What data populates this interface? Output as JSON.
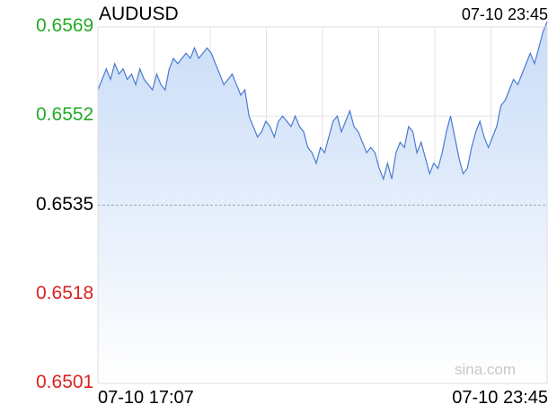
{
  "header": {
    "symbol": "AUDUSD",
    "timestamp": "07-10 23:45"
  },
  "watermark": "sina.com",
  "colors": {
    "up": "#22aa22",
    "down": "#dd2222",
    "neutral": "#000000",
    "line": "#4a7bd0",
    "fill_top": "#c9dcf7",
    "fill_bottom": "#ffffff",
    "grid": "#e3e3e3",
    "base_line": "#9aa6c4"
  },
  "chart_data": {
    "type": "area",
    "title": "AUDUSD",
    "xlabel": "",
    "ylabel": "",
    "ylim": [
      0.6501,
      0.6569
    ],
    "reference_price": 0.6535,
    "y_ticks": [
      {
        "label": "0.6569",
        "value": 0.6569,
        "tone": "up"
      },
      {
        "label": "0.6552",
        "value": 0.6552,
        "tone": "up"
      },
      {
        "label": "0.6535",
        "value": 0.6535,
        "tone": "neutral"
      },
      {
        "label": "0.6518",
        "value": 0.6518,
        "tone": "down"
      },
      {
        "label": "0.6501",
        "value": 0.6501,
        "tone": "down"
      }
    ],
    "x_ticks": [
      "07-10 17:07",
      "07-10 23:45"
    ],
    "grid": true,
    "series": [
      {
        "values": [
          0.6557,
          0.6559,
          0.6561,
          0.6559,
          0.6562,
          0.656,
          0.6561,
          0.6559,
          0.656,
          0.6558,
          0.6561,
          0.6559,
          0.6558,
          0.6557,
          0.656,
          0.6558,
          0.6557,
          0.6561,
          0.6563,
          0.6562,
          0.6563,
          0.6564,
          0.6563,
          0.6565,
          0.6563,
          0.6564,
          0.6565,
          0.6564,
          0.6562,
          0.656,
          0.6558,
          0.6559,
          0.656,
          0.6558,
          0.6556,
          0.6557,
          0.6552,
          0.655,
          0.6548,
          0.6549,
          0.6551,
          0.655,
          0.6548,
          0.6551,
          0.6552,
          0.6551,
          0.655,
          0.6552,
          0.655,
          0.6549,
          0.6546,
          0.6545,
          0.6543,
          0.6546,
          0.6545,
          0.6548,
          0.6551,
          0.6552,
          0.6549,
          0.6551,
          0.6553,
          0.655,
          0.6549,
          0.6547,
          0.6545,
          0.6546,
          0.6545,
          0.6542,
          0.654,
          0.6543,
          0.654,
          0.6545,
          0.6547,
          0.6546,
          0.655,
          0.6549,
          0.6545,
          0.6547,
          0.6544,
          0.6541,
          0.6543,
          0.6542,
          0.6545,
          0.6549,
          0.6552,
          0.6548,
          0.6544,
          0.6541,
          0.6542,
          0.6546,
          0.6549,
          0.6551,
          0.6548,
          0.6546,
          0.6548,
          0.655,
          0.6554,
          0.6555,
          0.6557,
          0.6559,
          0.6558,
          0.656,
          0.6562,
          0.6564,
          0.6562,
          0.6565,
          0.6568,
          0.657
        ]
      }
    ]
  }
}
